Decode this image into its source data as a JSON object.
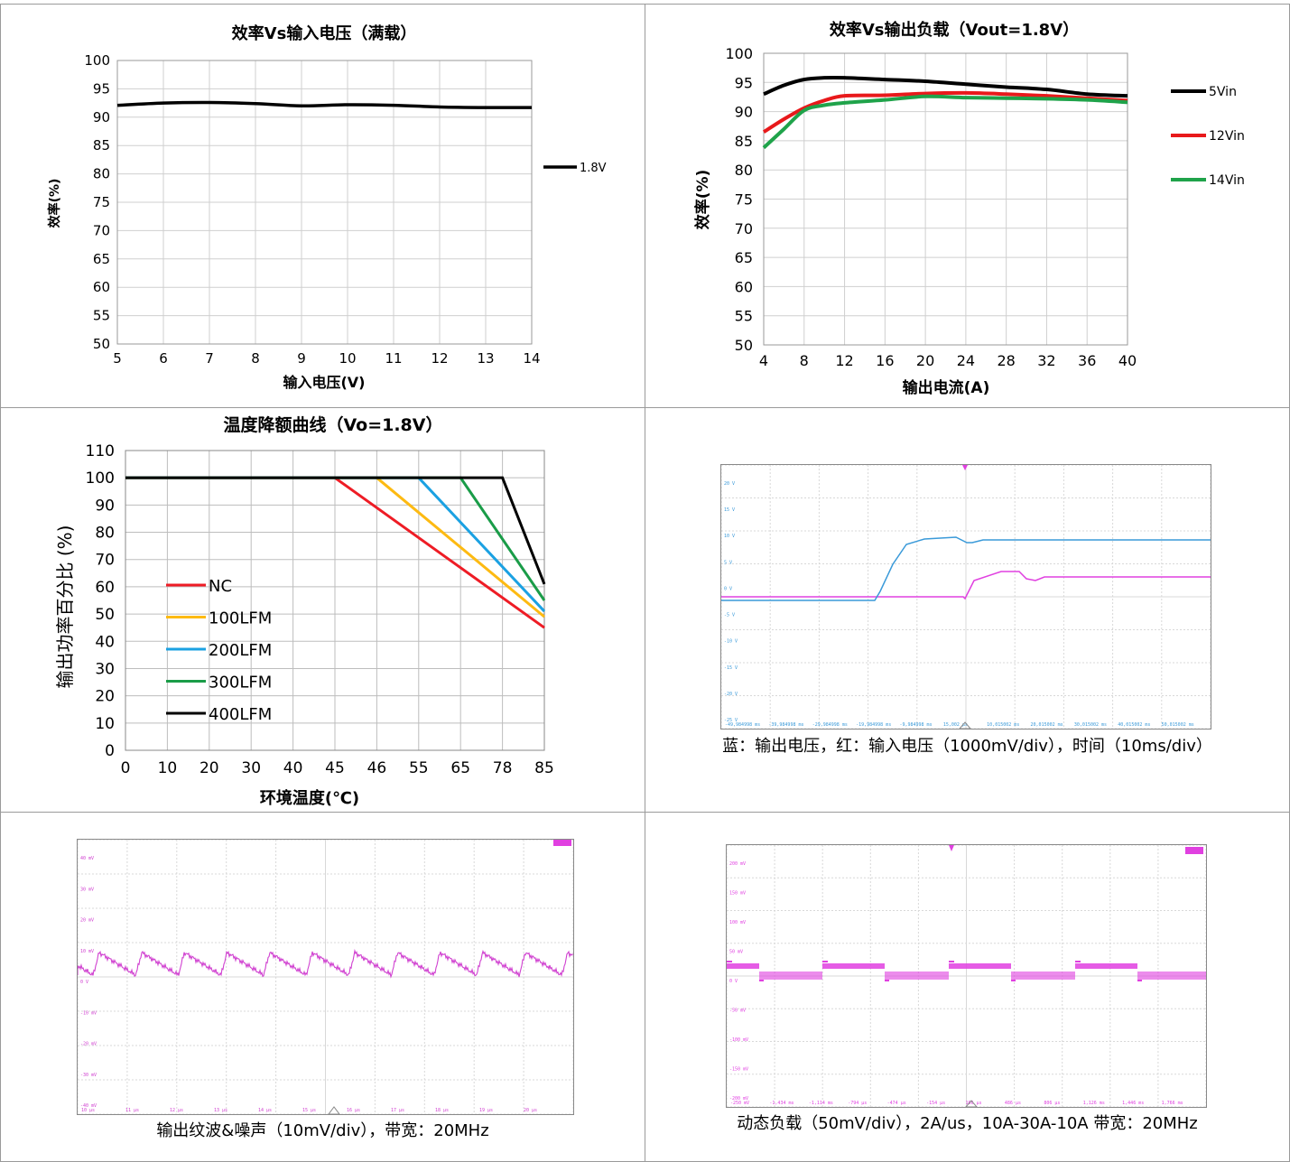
{
  "chart_data": [
    {
      "type": "line",
      "title": "效率Vs输入电压（满载）",
      "xlabel": "输入电压(V)",
      "ylabel": "效率(%)",
      "xlim": [
        5,
        14
      ],
      "ylim": [
        50,
        100
      ],
      "xticks": [
        "5",
        "6",
        "7",
        "8",
        "9",
        "10",
        "11",
        "12",
        "13",
        "14"
      ],
      "yticks": [
        "50",
        "55",
        "60",
        "65",
        "70",
        "75",
        "80",
        "85",
        "90",
        "95",
        "100"
      ],
      "grid": true,
      "legend_position": "right",
      "series": [
        {
          "name": "1.8V",
          "color": "#000000",
          "x": [
            5,
            6,
            7,
            8,
            9,
            10,
            11,
            12,
            13,
            14
          ],
          "y": [
            92.1,
            92.5,
            92.6,
            92.4,
            92.0,
            92.2,
            92.1,
            91.8,
            91.7,
            91.7
          ]
        }
      ]
    },
    {
      "type": "line",
      "title": "效率Vs输出负载（Vout=1.8V）",
      "xlabel": "输出电流(A)",
      "ylabel": "效率(%)",
      "xlim": [
        4,
        40
      ],
      "ylim": [
        50,
        100
      ],
      "xticks": [
        "4",
        "8",
        "12",
        "16",
        "20",
        "24",
        "28",
        "32",
        "36",
        "40"
      ],
      "yticks": [
        "50",
        "55",
        "60",
        "65",
        "70",
        "75",
        "80",
        "85",
        "90",
        "95",
        "100"
      ],
      "grid": true,
      "legend_position": "right",
      "series": [
        {
          "name": "5Vin",
          "color": "#000000",
          "x": [
            4,
            6,
            8,
            10,
            12,
            16,
            20,
            24,
            28,
            32,
            36,
            40
          ],
          "y": [
            93.0,
            94.5,
            95.5,
            95.8,
            95.8,
            95.5,
            95.2,
            94.7,
            94.2,
            93.8,
            93.0,
            92.7
          ]
        },
        {
          "name": "12Vin",
          "color": "#e8191b",
          "x": [
            4,
            6,
            8,
            10,
            12,
            16,
            20,
            24,
            28,
            32,
            36,
            40
          ],
          "y": [
            86.5,
            88.7,
            90.6,
            91.9,
            92.7,
            92.8,
            93.1,
            93.2,
            93.0,
            92.7,
            92.3,
            91.9
          ]
        },
        {
          "name": "14Vin",
          "color": "#1fa34a",
          "x": [
            4,
            6,
            8,
            10,
            12,
            16,
            20,
            24,
            28,
            32,
            36,
            40
          ],
          "y": [
            83.8,
            87.0,
            90.2,
            91.1,
            91.5,
            92.0,
            92.6,
            92.4,
            92.3,
            92.2,
            92.0,
            91.6
          ]
        }
      ]
    },
    {
      "type": "line",
      "title": "温度降额曲线（Vo=1.8V）",
      "xlabel": "环境温度(℃)",
      "ylabel": "输出功率百分比 (%)",
      "ylim": [
        0,
        110
      ],
      "xticks": [
        "0",
        "10",
        "20",
        "30",
        "40",
        "45",
        "46",
        "55",
        "65",
        "78",
        "85"
      ],
      "yticks": [
        "0",
        "10",
        "20",
        "30",
        "40",
        "50",
        "60",
        "70",
        "80",
        "90",
        "100",
        "110"
      ],
      "grid": true,
      "legend_position": "lower-left",
      "series": [
        {
          "name": "NC",
          "color": "#ee1c25",
          "x": [
            "0",
            "45",
            "85"
          ],
          "y": [
            100,
            100,
            45
          ]
        },
        {
          "name": "100LFM",
          "color": "#fdba12",
          "x": [
            "0",
            "46",
            "85"
          ],
          "y": [
            100,
            100,
            49
          ]
        },
        {
          "name": "200LFM",
          "color": "#1ba1e2",
          "x": [
            "0",
            "55",
            "85"
          ],
          "y": [
            100,
            100,
            51
          ]
        },
        {
          "name": "300LFM",
          "color": "#1a9c48",
          "x": [
            "0",
            "65",
            "85"
          ],
          "y": [
            100,
            100,
            55
          ]
        },
        {
          "name": "400LFM",
          "color": "#000000",
          "x": [
            "0",
            "78",
            "85"
          ],
          "y": [
            100,
            100,
            61
          ]
        }
      ]
    }
  ],
  "scopes": {
    "startup": {
      "caption": "蓝：输出电压，红：输入电压（1000mV/div），时间（10ms/div）",
      "y_labels": [
        "20 V",
        "15 V",
        "10 V",
        "5 V",
        "0 V",
        "-5 V",
        "-10 V",
        "-15 V",
        "-20 V",
        "-25 V"
      ],
      "x_labels": [
        "-49,984998 ms",
        "-39,984998 ms",
        "-29,984998 ms",
        "-19,984998 ms",
        "-9,984998 ms",
        "15,002 µs",
        "10,015002 ms",
        "20,015002 ms",
        "30,015002 ms",
        "40,015002 ms",
        "50,015002 ms"
      ],
      "colors": {
        "output": "#3a9ad9",
        "input": "#e040e0"
      }
    },
    "ripple": {
      "caption": "输出纹波&噪声（10mV/div），带宽：20MHz",
      "y_labels": [
        "40 mV",
        "30 mV",
        "20 mV",
        "10 mV",
        "0 V",
        "-10 mV",
        "-20 mV",
        "-30 mV",
        "-40 mV"
      ],
      "x_labels": [
        "10 µs",
        "11 µs",
        "12 µs",
        "13 µs",
        "14 µs",
        "15 µs",
        "16 µs",
        "17 µs",
        "18 µs",
        "19 µs",
        "20 µs"
      ],
      "color": "#d040d0"
    },
    "transient": {
      "caption": "动态负载（50mV/div），2A/us，10A-30A-10A 带宽：20MHz",
      "y_labels": [
        "200 mV",
        "150 mV",
        "100 mV",
        "50 mV",
        "0 V",
        "-50 mV",
        "-100 mV",
        "-150 mV",
        "-200 mV"
      ],
      "x_labels": [
        "-250 mV",
        "-1,434 ms",
        "-1,114 ms",
        "-794 µs",
        "-474 µs",
        "-154 µs",
        "166 µs",
        "486 µs",
        "806 µs",
        "1,126 ms",
        "1,446 ms",
        "1,766 ms"
      ],
      "color": "#e040e0"
    }
  }
}
